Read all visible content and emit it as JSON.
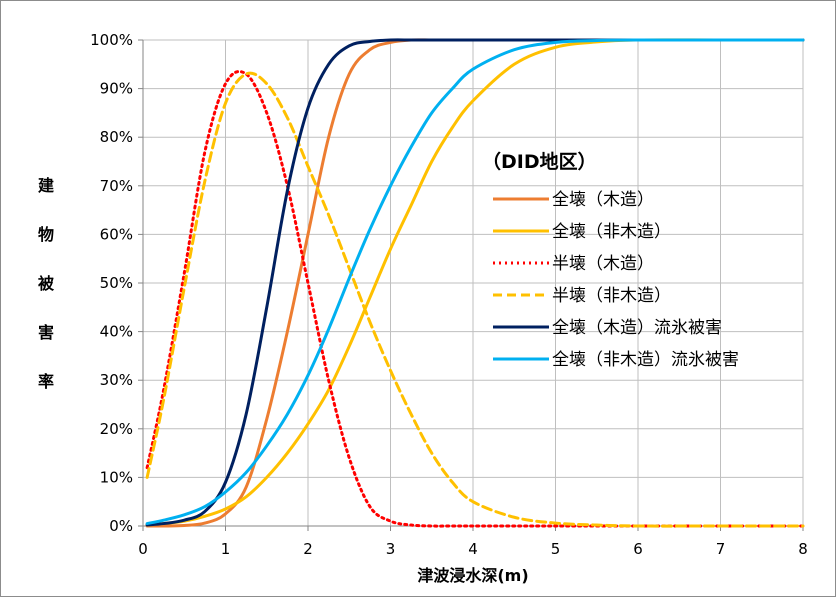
{
  "chart_data": {
    "type": "line",
    "ylabel": "建物被害率",
    "xlabel": "津波浸水深(m)",
    "xlim": [
      0,
      8
    ],
    "ylim": [
      0,
      100
    ],
    "x_ticks": [
      "0",
      "1",
      "2",
      "3",
      "4",
      "5",
      "6",
      "7",
      "8"
    ],
    "y_ticks": [
      "0%",
      "10%",
      "20%",
      "30%",
      "40%",
      "50%",
      "60%",
      "70%",
      "80%",
      "90%",
      "100%"
    ],
    "grid": true,
    "legend_title": "（DID地区）",
    "legend_position": "right",
    "x": [
      0.05,
      0.25,
      0.5,
      0.75,
      1.0,
      1.25,
      1.5,
      1.75,
      2.0,
      2.25,
      2.5,
      2.75,
      3.0,
      3.25,
      3.5,
      3.75,
      4.0,
      4.5,
      5.0,
      5.5,
      6.0,
      7.0,
      8.0
    ],
    "series": [
      {
        "name": "全壊（木造）",
        "color": "#ED7D31",
        "dash": "solid",
        "values": [
          0.0,
          0.0,
          0.1,
          0.6,
          2.5,
          8.0,
          22.0,
          40.0,
          60.0,
          80.0,
          93.0,
          98.0,
          99.5,
          100,
          100,
          100,
          100,
          100,
          100,
          100,
          100,
          100,
          100
        ]
      },
      {
        "name": "全壊（非木造）",
        "color": "#FFC000",
        "dash": "solid",
        "values": [
          0.2,
          0.5,
          1.0,
          2.0,
          3.5,
          6.0,
          10.0,
          15.0,
          21.0,
          28.0,
          37.0,
          47.0,
          57.0,
          66.0,
          75.0,
          82.0,
          87.5,
          95.0,
          98.5,
          99.6,
          100,
          100,
          100
        ]
      },
      {
        "name": "半壊（木造）",
        "color": "#FF0000",
        "dash": "dot",
        "values": [
          12.0,
          28.0,
          52.0,
          77.0,
          91.0,
          93.0,
          85.0,
          70.0,
          50.0,
          30.0,
          14.0,
          4.0,
          1.0,
          0.2,
          0.0,
          0.0,
          0.0,
          0.0,
          0.0,
          0.0,
          0.0,
          0.0,
          0.0
        ]
      },
      {
        "name": "半壊（非木造）",
        "color": "#FFC000",
        "dash": "dash",
        "values": [
          10.0,
          26.0,
          49.0,
          71.0,
          87.0,
          93.0,
          91.0,
          84.0,
          74.0,
          64.0,
          53.0,
          42.0,
          32.0,
          23.0,
          15.0,
          9.0,
          5.0,
          1.8,
          0.6,
          0.2,
          0.0,
          0.0,
          0.0
        ]
      },
      {
        "name": "全壊（木造）流氷被害",
        "color": "#002060",
        "dash": "solid",
        "values": [
          0.2,
          0.5,
          1.2,
          3.0,
          9.0,
          23.0,
          45.0,
          69.0,
          86.0,
          95.0,
          98.8,
          99.7,
          100,
          100,
          100,
          100,
          100,
          100,
          100,
          100,
          100,
          100,
          100
        ]
      },
      {
        "name": "全壊（非木造）流氷被害",
        "color": "#00B0F0",
        "dash": "solid",
        "values": [
          0.5,
          1.2,
          2.3,
          4.0,
          7.0,
          11.0,
          16.5,
          23.0,
          31.0,
          40.5,
          51.0,
          61.0,
          70.0,
          78.0,
          85.0,
          90.0,
          94.0,
          98.0,
          99.5,
          99.9,
          100,
          100,
          100
        ]
      }
    ]
  }
}
